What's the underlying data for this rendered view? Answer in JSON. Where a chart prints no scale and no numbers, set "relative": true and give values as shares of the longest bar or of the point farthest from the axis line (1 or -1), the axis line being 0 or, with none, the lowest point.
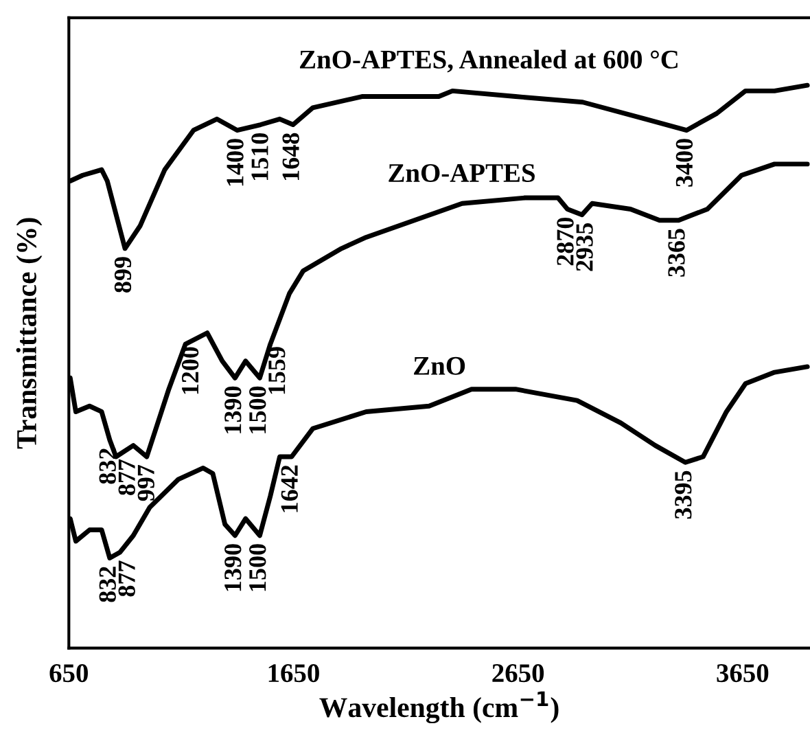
{
  "chart_data": {
    "type": "line",
    "xlabel": "Wavelength (cm$^{−1}$)",
    "ylabel": "Transmittance (%)",
    "relative": true,
    "xlim": [
      650,
      3950
    ],
    "xticks": [
      650,
      1650,
      2650,
      3650
    ],
    "tick_labels": "x",
    "grid": false,
    "legend": false,
    "marker": "none",
    "line_style": "solid",
    "series": [
      {
        "name": "ZnO-APTES, Annealed at 600 °C",
        "color": "#000000",
        "x": [
          656,
          711,
          796,
          821,
          900,
          967,
          1077,
          1205,
          1309,
          1400,
          1504,
          1589,
          1648,
          1736,
          1955,
          2297,
          2358,
          2639,
          2938,
          3218,
          3400,
          3535,
          3663,
          3792,
          3938
        ],
        "values": [
          0.83,
          0.84,
          0.85,
          0.83,
          0.71,
          0.75,
          0.85,
          0.92,
          0.94,
          0.92,
          0.93,
          0.94,
          0.93,
          0.96,
          0.98,
          0.98,
          0.99,
          0.98,
          0.97,
          0.94,
          0.92,
          0.95,
          0.99,
          0.99,
          1.0
        ]
      },
      {
        "name": "ZnO-APTES",
        "color": "#000000",
        "x": [
          656,
          681,
          742,
          796,
          832,
          860,
          937,
          997,
          1095,
          1169,
          1266,
          1333,
          1390,
          1437,
          1500,
          1547,
          1632,
          1693,
          1864,
          1974,
          2401,
          2681,
          2828,
          2870,
          2935,
          2980,
          3151,
          3280,
          3365,
          3493,
          3645,
          3792,
          3938
        ],
        "values": [
          0.48,
          0.42,
          0.43,
          0.42,
          0.37,
          0.34,
          0.36,
          0.34,
          0.46,
          0.54,
          0.56,
          0.51,
          0.48,
          0.51,
          0.48,
          0.54,
          0.63,
          0.67,
          0.71,
          0.73,
          0.79,
          0.8,
          0.8,
          0.78,
          0.77,
          0.79,
          0.78,
          0.76,
          0.76,
          0.78,
          0.84,
          0.86,
          0.86
        ]
      },
      {
        "name": "ZnO",
        "color": "#000000",
        "x": [
          656,
          681,
          742,
          796,
          832,
          877,
          937,
          1010,
          1138,
          1248,
          1291,
          1345,
          1390,
          1437,
          1500,
          1547,
          1589,
          1642,
          1736,
          1974,
          2254,
          2443,
          2639,
          2913,
          3108,
          3261,
          3395,
          3474,
          3578,
          3663,
          3792,
          3938
        ],
        "values": [
          0.23,
          0.19,
          0.21,
          0.21,
          0.16,
          0.17,
          0.2,
          0.25,
          0.3,
          0.32,
          0.31,
          0.22,
          0.2,
          0.23,
          0.2,
          0.27,
          0.34,
          0.34,
          0.39,
          0.42,
          0.43,
          0.46,
          0.46,
          0.44,
          0.4,
          0.36,
          0.33,
          0.34,
          0.42,
          0.47,
          0.49,
          0.5
        ]
      }
    ],
    "annotations": [
      {
        "text": "899",
        "x": 900,
        "y": 0.71
      },
      {
        "text": "1400",
        "x": 1400,
        "y": 0.92
      },
      {
        "text": "1510",
        "x": 1510,
        "y": 0.93
      },
      {
        "text": "1648",
        "x": 1648,
        "y": 0.93
      },
      {
        "text": "3400",
        "x": 3400,
        "y": 0.92
      },
      {
        "text": "832",
        "x": 832,
        "y": 0.37
      },
      {
        "text": "877",
        "x": 877,
        "y": 0.35
      },
      {
        "text": "997",
        "x": 997,
        "y": 0.34
      },
      {
        "text": "1200",
        "x": 1200,
        "y": 0.55
      },
      {
        "text": "1390",
        "x": 1390,
        "y": 0.48
      },
      {
        "text": "1500",
        "x": 1500,
        "y": 0.48
      },
      {
        "text": "1559",
        "x": 1559,
        "y": 0.55
      },
      {
        "text": "2870",
        "x": 2870,
        "y": 0.78
      },
      {
        "text": "2935",
        "x": 2935,
        "y": 0.77
      },
      {
        "text": "3365",
        "x": 3365,
        "y": 0.76
      },
      {
        "text": "832",
        "x": 832,
        "y": 0.16
      },
      {
        "text": "877",
        "x": 877,
        "y": 0.17
      },
      {
        "text": "1390",
        "x": 1390,
        "y": 0.2
      },
      {
        "text": "1500",
        "x": 1500,
        "y": 0.2
      },
      {
        "text": "1642",
        "x": 1642,
        "y": 0.34
      },
      {
        "text": "3395",
        "x": 3395,
        "y": 0.33
      }
    ]
  }
}
